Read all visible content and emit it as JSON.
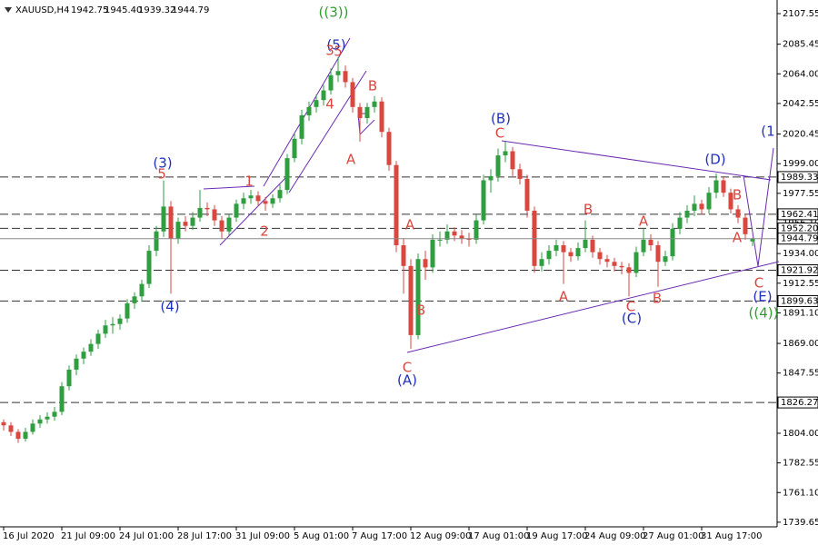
{
  "header": {
    "symbol": "XAUUSD,H4",
    "ohlc": [
      "1942.75",
      "1945.40",
      "1939.32",
      "1944.79"
    ]
  },
  "chart_data": {
    "type": "candlestick",
    "up_color": "#2f9e3f",
    "down_color": "#d9473f",
    "x": [
      "16 Jul 2020",
      null,
      null,
      null,
      null,
      null,
      null,
      null,
      "21 Jul 09:00",
      null,
      null,
      null,
      null,
      null,
      null,
      null,
      "24 Jul 01:00",
      null,
      null,
      null,
      null,
      null,
      null,
      null,
      "28 Jul 17:00",
      null,
      null,
      null,
      null,
      null,
      null,
      null,
      "31 Jul 09:00",
      null,
      null,
      null,
      null,
      null,
      null,
      null,
      "5 Aug 01:00",
      null,
      null,
      null,
      null,
      null,
      null,
      null,
      "7 Aug 17:00",
      null,
      null,
      null,
      null,
      null,
      null,
      null,
      "12 Aug 09:00",
      null,
      null,
      null,
      null,
      null,
      null,
      null,
      "17 Aug 01:00",
      null,
      null,
      null,
      null,
      null,
      null,
      null,
      "19 Aug 17:00",
      null,
      null,
      null,
      null,
      null,
      null,
      null,
      "24 Aug 09:00",
      null,
      null,
      null,
      null,
      null,
      null,
      null,
      "27 Aug 01:00",
      null,
      null,
      null,
      null,
      null,
      null,
      null,
      "31 Aug 17:00",
      null,
      null,
      null,
      null,
      null,
      null,
      null
    ],
    "candles": [
      [
        1812,
        1814,
        1806,
        1809.7
      ],
      [
        1809.7,
        1812,
        1802,
        1805
      ],
      [
        1805,
        1807,
        1797,
        1800
      ],
      [
        1800,
        1808,
        1798,
        1805
      ],
      [
        1805,
        1814,
        1803,
        1811
      ],
      [
        1811,
        1817,
        1808,
        1814
      ],
      [
        1814,
        1819,
        1811,
        1816
      ],
      [
        1816,
        1823,
        1813,
        1819.5
      ],
      [
        1819.5,
        1841,
        1817,
        1838
      ],
      [
        1838,
        1853,
        1835,
        1850
      ],
      [
        1850,
        1861,
        1846,
        1858
      ],
      [
        1858,
        1866,
        1854,
        1863
      ],
      [
        1863,
        1872,
        1860,
        1868.6
      ],
      [
        1868.6,
        1879,
        1865,
        1876
      ],
      [
        1876,
        1886,
        1873,
        1882
      ],
      [
        1882,
        1888,
        1876,
        1883
      ],
      [
        1883,
        1890,
        1879,
        1887
      ],
      [
        1887,
        1901,
        1884,
        1898
      ],
      [
        1898,
        1906,
        1894,
        1903
      ],
      [
        1903,
        1915,
        1899,
        1912
      ],
      [
        1912,
        1940,
        1909,
        1936
      ],
      [
        1936,
        1954,
        1932,
        1950
      ],
      [
        1950,
        1987,
        1946,
        1968
      ],
      [
        1968,
        1972,
        1905,
        1945
      ],
      [
        1945,
        1960,
        1941,
        1957
      ],
      [
        1957,
        1961,
        1950,
        1954
      ],
      [
        1954,
        1964,
        1951,
        1960
      ],
      [
        1960,
        1980,
        1957,
        1967
      ],
      [
        1967,
        1971,
        1961,
        1966
      ],
      [
        1966,
        1969,
        1954,
        1958
      ],
      [
        1958,
        1961,
        1945,
        1950
      ],
      [
        1950,
        1963,
        1947,
        1960
      ],
      [
        1960,
        1973,
        1957,
        1970
      ],
      [
        1970,
        1978,
        1966,
        1974
      ],
      [
        1974,
        1980,
        1970,
        1976
      ],
      [
        1976,
        1979,
        1968,
        1972
      ],
      [
        1972,
        1975,
        1965,
        1970
      ],
      [
        1970,
        1977,
        1967,
        1974
      ],
      [
        1974,
        1984,
        1971,
        1980
      ],
      [
        1980,
        2006,
        1977,
        2003
      ],
      [
        2003,
        2021,
        2000,
        2017
      ],
      [
        2017,
        2038,
        2013,
        2034
      ],
      [
        2034,
        2044,
        2030,
        2040
      ],
      [
        2040,
        2049,
        2036,
        2045
      ],
      [
        2045,
        2056,
        2041,
        2052
      ],
      [
        2052,
        2068,
        2049,
        2063
      ],
      [
        2063,
        2076,
        2058,
        2066
      ],
      [
        2066,
        2070,
        2054,
        2058
      ],
      [
        2058,
        2061,
        2036,
        2040
      ],
      [
        2040,
        2043,
        2015,
        2032
      ],
      [
        2032,
        2043,
        2028,
        2040
      ],
      [
        2040,
        2048,
        2036,
        2044
      ],
      [
        2044,
        2047,
        2018,
        2022
      ],
      [
        2022,
        2025,
        1994,
        1998
      ],
      [
        1998,
        2001,
        1935,
        1940
      ],
      [
        1940,
        1945,
        1905,
        1925
      ],
      [
        1925,
        1930,
        1865,
        1875
      ],
      [
        1875,
        1934,
        1872,
        1930
      ],
      [
        1930,
        1936,
        1915,
        1924
      ],
      [
        1924,
        1948,
        1920,
        1944
      ],
      [
        1944,
        1950,
        1939,
        1944
      ],
      [
        1944,
        1955,
        1941,
        1950
      ],
      [
        1950,
        1953,
        1943,
        1947
      ],
      [
        1947,
        1951,
        1941,
        1945
      ],
      [
        1945,
        1949,
        1939,
        1944
      ],
      [
        1944,
        1962,
        1941,
        1958
      ],
      [
        1958,
        1991,
        1955,
        1987
      ],
      [
        1987,
        1995,
        1978,
        1990
      ],
      [
        1990,
        2010,
        1986,
        2005
      ],
      [
        2005,
        2015,
        2000,
        2008
      ],
      [
        2008,
        2011,
        1990,
        1995
      ],
      [
        1995,
        1999,
        1984,
        1988
      ],
      [
        1988,
        1991,
        1960,
        1965
      ],
      [
        1965,
        1968,
        1920,
        1925
      ],
      [
        1925,
        1935,
        1921,
        1930
      ],
      [
        1930,
        1940,
        1926,
        1936
      ],
      [
        1936,
        1944,
        1932,
        1940
      ],
      [
        1940,
        1943,
        1912,
        1935
      ],
      [
        1935,
        1938,
        1928,
        1932
      ],
      [
        1932,
        1942,
        1929,
        1938
      ],
      [
        1938,
        1958,
        1935,
        1944
      ],
      [
        1944,
        1947,
        1931,
        1935
      ],
      [
        1935,
        1938,
        1926,
        1930
      ],
      [
        1930,
        1933,
        1924,
        1928
      ],
      [
        1928,
        1931,
        1921,
        1925
      ],
      [
        1925,
        1928,
        1919,
        1924
      ],
      [
        1924,
        1927,
        1903,
        1920
      ],
      [
        1920,
        1939,
        1917,
        1935
      ],
      [
        1935,
        1952,
        1932,
        1944
      ],
      [
        1944,
        1948,
        1936,
        1940
      ],
      [
        1940,
        1943,
        1910,
        1928
      ],
      [
        1928,
        1936,
        1925,
        1932
      ],
      [
        1932,
        1956,
        1929,
        1952
      ],
      [
        1952,
        1964,
        1948,
        1960
      ],
      [
        1960,
        1969,
        1956,
        1965
      ],
      [
        1965,
        1976,
        1961,
        1970
      ],
      [
        1970,
        1973,
        1962,
        1966
      ],
      [
        1966,
        1982,
        1963,
        1978
      ],
      [
        1978,
        1992,
        1974,
        1987
      ],
      [
        1987,
        1990,
        1975,
        1978
      ],
      [
        1978,
        1981,
        1963,
        1966
      ],
      [
        1966,
        1969,
        1956,
        1960
      ],
      [
        1960,
        1963,
        1944,
        1948
      ],
      [
        1942.75,
        1945.4,
        1939.32,
        1944.79
      ]
    ],
    "ylim": [
      1736.3,
      2116.1
    ],
    "yticks": [
      2107.55,
      2085.45,
      {
        "value": 2064,
        "label": "2064.00"
      },
      2042.55,
      2020.45,
      {
        "value": 1999,
        "label": "1999.00"
      },
      1977.55,
      {
        "value": 1956.1,
        "label": "1956.10"
      },
      {
        "value": 1934,
        "label": "1934.00"
      },
      1912.55,
      {
        "value": 1891.1,
        "label": "1891.10"
      },
      {
        "value": 1869,
        "label": "1869.00"
      },
      1847.55,
      {
        "value": 1804,
        "label": "1804.00"
      },
      1782.55,
      {
        "value": 1761.1,
        "label": "1761.10"
      },
      1739.65
    ],
    "levels": [
      1989.33,
      1962.41,
      {
        "value": 1952.2,
        "label": "1952.20"
      },
      1921.92,
      1899.63,
      1826.27
    ],
    "annotations": [
      {
        "text": "((3))",
        "color": "#2e9e2e"
      },
      {
        "text": "(5)",
        "color": "#1f2fbf"
      },
      {
        "text": "3",
        "color": "#d9473f"
      },
      {
        "text": "5",
        "color": "#d9473f"
      },
      {
        "text": "4",
        "color": "#d9473f"
      },
      {
        "text": "(3)",
        "color": "#1f2fbf"
      },
      {
        "text": "5",
        "color": "#d9473f"
      },
      {
        "text": "1",
        "color": "#d9473f"
      },
      {
        "text": "2",
        "color": "#d9473f"
      },
      {
        "text": "(4)",
        "color": "#1f2fbf"
      },
      {
        "text": "A",
        "color": "#d9473f"
      },
      {
        "text": "B",
        "color": "#d9473f"
      },
      {
        "text": "C",
        "color": "#d9473f"
      },
      {
        "text": "(A)",
        "color": "#1f2fbf"
      },
      {
        "text": "A",
        "color": "#d9473f"
      },
      {
        "text": "B",
        "color": "#d9473f"
      },
      {
        "text": "(B)",
        "color": "#1f2fbf"
      },
      {
        "text": "C",
        "color": "#d9473f"
      },
      {
        "text": "A",
        "color": "#d9473f"
      },
      {
        "text": "B",
        "color": "#d9473f"
      },
      {
        "text": "A",
        "color": "#d9473f"
      },
      {
        "text": "C",
        "color": "#d9473f"
      },
      {
        "text": "(C)",
        "color": "#1f2fbf"
      },
      {
        "text": "B",
        "color": "#d9473f"
      },
      {
        "text": "(D)",
        "color": "#1f2fbf"
      },
      {
        "text": "B",
        "color": "#d9473f"
      },
      {
        "text": "A",
        "color": "#d9473f"
      },
      {
        "text": "C",
        "color": "#d9473f"
      },
      {
        "text": "(E)",
        "color": "#1f2fbf"
      },
      {
        "text": "((4))",
        "color": "#2e9e2e"
      },
      {
        "text": "(1",
        "color": "#1f2fbf"
      }
    ]
  }
}
